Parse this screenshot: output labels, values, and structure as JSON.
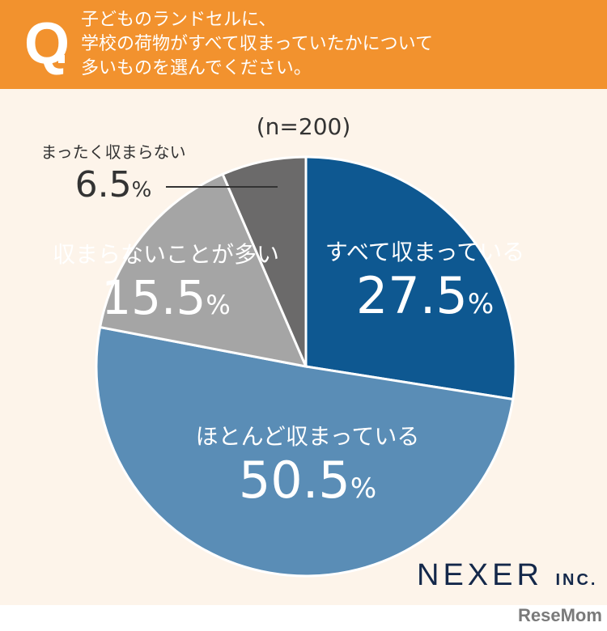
{
  "header": {
    "q_label": "Q",
    "question_lines": [
      "子どものランドセルに、",
      "学校の荷物がすべて収まっていたかについて",
      "多いものを選んでください。"
    ]
  },
  "chart_data": {
    "type": "pie",
    "note": "(n=200)",
    "start": "top",
    "direction": "clockwise",
    "slices": [
      {
        "label": "すべて収まっている",
        "value": 27.5,
        "display": "27.5",
        "color": "#0e5891"
      },
      {
        "label": "ほとんど収まっている",
        "value": 50.5,
        "display": "50.5",
        "color": "#5a8db6"
      },
      {
        "label": "収まらないことが多い",
        "value": 15.5,
        "display": "15.5",
        "color": "#a5a5a5"
      },
      {
        "label": "まったく収まらない",
        "value": 6.5,
        "display": "6.5",
        "color": "#6b6a6a"
      }
    ],
    "unit": "%"
  },
  "branding": {
    "company": "NEXER",
    "company_suffix": "INC.",
    "source_logo": "ReseMom"
  }
}
